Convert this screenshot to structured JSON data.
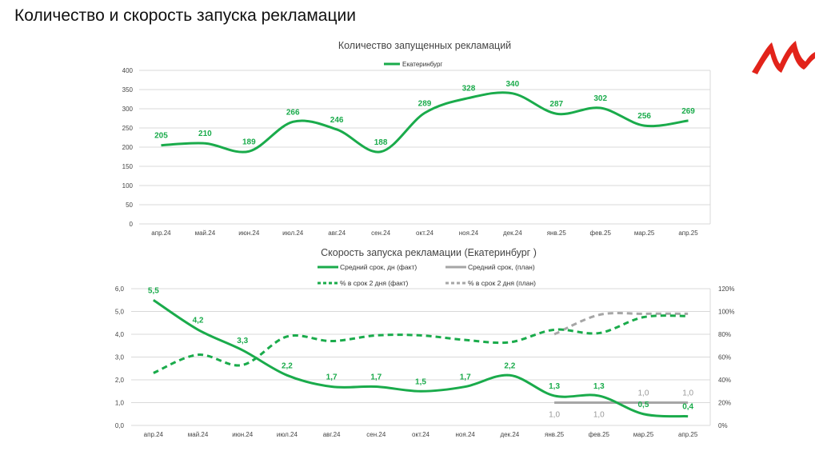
{
  "slide_title": "Количество и скорость запуска рекламации",
  "colors": {
    "green": "#1aab4b",
    "gray": "#a6a6a6",
    "logo": "#e2231a"
  },
  "chart_data": [
    {
      "type": "line",
      "title": "Количество запущенных рекламаций",
      "categories": [
        "апр.24",
        "май.24",
        "июн.24",
        "июл.24",
        "авг.24",
        "сен.24",
        "окт.24",
        "ноя.24",
        "дек.24",
        "янв.25",
        "фев.25",
        "мар.25",
        "апр.25"
      ],
      "series": [
        {
          "name": "Екатеринбург",
          "values": [
            205,
            210,
            189,
            266,
            246,
            188,
            289,
            328,
            340,
            287,
            302,
            256,
            269
          ]
        }
      ],
      "ylim": [
        0,
        400
      ],
      "yticks": [
        "0",
        "50",
        "100",
        "150",
        "200",
        "250",
        "300",
        "350",
        "400"
      ],
      "legend": "top",
      "grid": true
    },
    {
      "type": "line",
      "title": "Скорость запуска рекламации (Екатеринбург )",
      "categories": [
        "апр.24",
        "май.24",
        "июн.24",
        "июл.24",
        "авг.24",
        "сен.24",
        "окт.24",
        "ноя.24",
        "дек.24",
        "янв.25",
        "фев.25",
        "мар.25",
        "апр.25"
      ],
      "series": [
        {
          "name": "Средний срок, дн (факт)",
          "axis": "left",
          "values": [
            5.5,
            4.2,
            3.3,
            2.2,
            1.7,
            1.7,
            1.5,
            1.7,
            2.2,
            1.3,
            1.3,
            0.5,
            0.4
          ],
          "labels": [
            "5,5",
            "4,2",
            "3,3",
            "2,2",
            "1,7",
            "1,7",
            "1,5",
            "1,7",
            "2,2",
            "1,3",
            "1,3",
            "0,5",
            "0,4"
          ]
        },
        {
          "name": "Средний срок, (план)",
          "axis": "left",
          "values": [
            null,
            null,
            null,
            null,
            null,
            null,
            null,
            null,
            null,
            1.0,
            1.0,
            1.0,
            1.0
          ],
          "labels": [
            null,
            null,
            null,
            null,
            null,
            null,
            null,
            null,
            null,
            "1,0",
            "1,0",
            "1,0",
            "1,0"
          ]
        },
        {
          "name": "% в срок 2 дня (факт)",
          "axis": "right",
          "values": [
            46,
            62,
            53,
            78,
            74,
            79,
            79,
            75,
            73,
            84,
            81,
            95,
            96
          ]
        },
        {
          "name": "% в срок 2 дня (план)",
          "axis": "right",
          "values": [
            null,
            null,
            null,
            null,
            null,
            null,
            null,
            null,
            null,
            80,
            97,
            98,
            98
          ]
        }
      ],
      "ylim": [
        0,
        6
      ],
      "yticks": [
        "0,0",
        "1,0",
        "2,0",
        "3,0",
        "4,0",
        "5,0",
        "6,0"
      ],
      "y2lim": [
        0,
        120
      ],
      "y2ticks": [
        "0%",
        "20%",
        "40%",
        "60%",
        "80%",
        "100%",
        "120%"
      ],
      "legend": "top",
      "grid": true
    }
  ]
}
